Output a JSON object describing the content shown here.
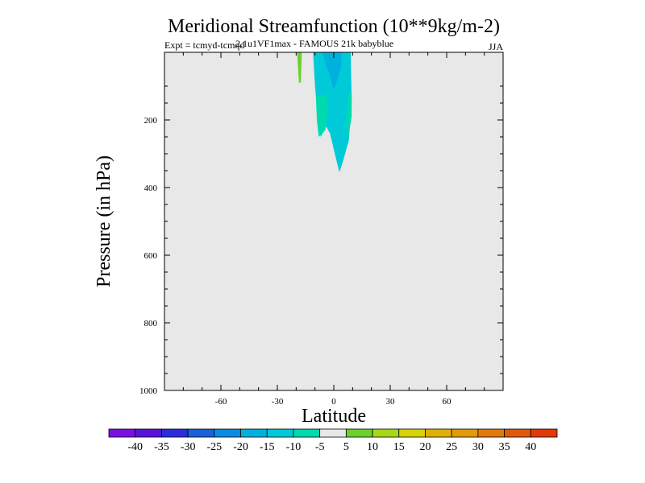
{
  "chart_data": {
    "type": "heatmap",
    "title": "Meridional Streamfunction (10**9kg/m-2)",
    "subtitle_left": "Expt = tcmyd-tcmqd",
    "subtitle_overlap": "2.1u1VF1max - FAMOUS 21k babyblue",
    "season": "JJA",
    "xlabel": "Latitude",
    "ylabel": "Pressure (in hPa)",
    "xlim": [
      -90,
      90
    ],
    "ylim": [
      1000,
      0
    ],
    "x_ticks": [
      {
        "value": -60,
        "label": "-60"
      },
      {
        "value": -30,
        "label": "-30"
      },
      {
        "value": 0,
        "label": "0"
      },
      {
        "value": 30,
        "label": "30"
      },
      {
        "value": 60,
        "label": "60"
      }
    ],
    "y_ticks": [
      {
        "value": 200,
        "label": "200"
      },
      {
        "value": 400,
        "label": "400"
      },
      {
        "value": 600,
        "label": "600"
      },
      {
        "value": 800,
        "label": "800"
      },
      {
        "value": 1000,
        "label": "1000"
      }
    ],
    "background_color": "#e8e8e8",
    "regions": [
      {
        "name": "green-sliver",
        "level": "5 to 10",
        "color": "#6ad12d",
        "points": [
          [
            -19.5,
            0
          ],
          [
            -17,
            0
          ],
          [
            -17.5,
            90
          ],
          [
            -18.5,
            90
          ]
        ]
      },
      {
        "name": "cyan-outer",
        "level": "-15 to -10",
        "color": "#00c9d8",
        "points": [
          [
            -11,
            0
          ],
          [
            9,
            0
          ],
          [
            9.5,
            150
          ],
          [
            8,
            260
          ],
          [
            5,
            320
          ],
          [
            3,
            355
          ],
          [
            1,
            310
          ],
          [
            -2,
            240
          ],
          [
            -4,
            220
          ],
          [
            -7,
            250
          ],
          [
            -8.5,
            200
          ],
          [
            -10,
            100
          ],
          [
            -11,
            0
          ]
        ]
      },
      {
        "name": "blue-core",
        "level": "-20 to -15",
        "color": "#00b1de",
        "points": [
          [
            -6,
            0
          ],
          [
            4,
            0
          ],
          [
            4,
            40
          ],
          [
            2,
            80
          ],
          [
            0,
            110
          ],
          [
            -2,
            70
          ],
          [
            -4,
            40
          ]
        ]
      },
      {
        "name": "teal-lower",
        "level": "-10 to -5",
        "color": "#00daae",
        "points": [
          [
            -9.5,
            130
          ],
          [
            -4,
            125
          ],
          [
            -3,
            160
          ],
          [
            -4.5,
            230
          ],
          [
            -8,
            250
          ],
          [
            -9,
            200
          ]
        ]
      },
      {
        "name": "teal-right",
        "level": "-10 to -5",
        "color": "#00daae",
        "points": [
          [
            8,
            120
          ],
          [
            9.5,
            120
          ],
          [
            9.5,
            190
          ],
          [
            7.5,
            260
          ],
          [
            6.5,
            200
          ]
        ]
      }
    ],
    "colorbar": {
      "colors": [
        "#7a0fe0",
        "#5a12d8",
        "#2a2ddb",
        "#1a60d8",
        "#0a8ae0",
        "#00b1de",
        "#00c9d8",
        "#00daae",
        "#e8e8e8",
        "#6ad12d",
        "#a6d81a",
        "#d8d30a",
        "#e0b00a",
        "#e09a0a",
        "#e07a0a",
        "#e05a0a",
        "#e03a0a"
      ],
      "labels": [
        "-40",
        "-35",
        "-30",
        "-25",
        "-20",
        "-15",
        "-10",
        "-5",
        "5",
        "10",
        "15",
        "20",
        "25",
        "30",
        "35",
        "40"
      ]
    }
  }
}
